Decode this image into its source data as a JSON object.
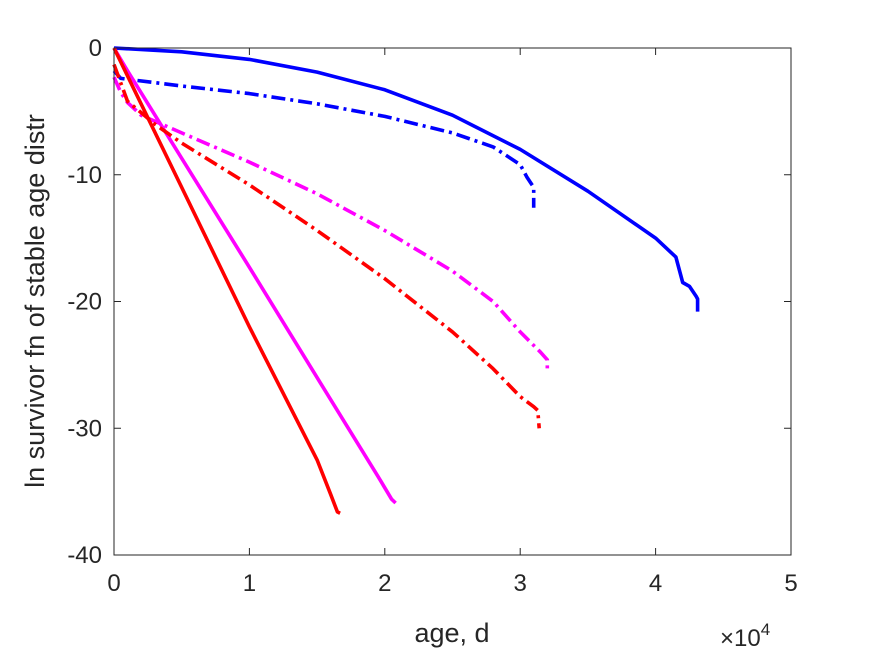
{
  "chart_data": {
    "type": "line",
    "title": "",
    "xlabel": "age, d",
    "ylabel": "ln survivor fn of stable age distr",
    "x_exponent_label": "×10",
    "x_exponent_power": "4",
    "xlim": [
      0,
      50000
    ],
    "ylim": [
      -40,
      0
    ],
    "xticks": [
      0,
      10000,
      20000,
      30000,
      40000,
      50000
    ],
    "xtick_labels": [
      "0",
      "1",
      "2",
      "3",
      "4",
      "5"
    ],
    "yticks": [
      0,
      -10,
      -20,
      -30,
      -40
    ],
    "ytick_labels": [
      "0",
      "-10",
      "-20",
      "-30",
      "-40"
    ],
    "grid": false,
    "legend": "none",
    "series": [
      {
        "color": "#0000ff",
        "style": "solid",
        "x": [
          0,
          5000,
          10000,
          15000,
          20000,
          25000,
          30000,
          35000,
          40000,
          41500,
          42000,
          42500,
          43000,
          43100,
          43100
        ],
        "y": [
          0,
          -0.3,
          -0.9,
          -1.9,
          -3.3,
          -5.3,
          -8.0,
          -11.3,
          -15.0,
          -16.5,
          -18.5,
          -18.8,
          -19.6,
          -19.8,
          -20.8
        ]
      },
      {
        "color": "#0000ff",
        "style": "dashdot",
        "x": [
          0,
          500,
          5000,
          10000,
          15000,
          20000,
          25000,
          28000,
          30000,
          30500,
          31000,
          31000
        ],
        "y": [
          -1.8,
          -2.4,
          -3.0,
          -3.6,
          -4.4,
          -5.4,
          -6.7,
          -7.8,
          -9.2,
          -10.2,
          -11.0,
          -12.6
        ]
      },
      {
        "color": "#ff00ff",
        "style": "solid",
        "x": [
          0,
          1000,
          5000,
          10000,
          15000,
          19500,
          20500,
          20800
        ],
        "y": [
          0,
          -1.8,
          -8.7,
          -17.3,
          -26.0,
          -33.8,
          -35.6,
          -35.9
        ]
      },
      {
        "color": "#ff00ff",
        "style": "dashdot",
        "x": [
          0,
          500,
          1000,
          2000,
          5000,
          10000,
          15000,
          20000,
          25000,
          28000,
          30000,
          31500,
          32000,
          32000
        ],
        "y": [
          -2.3,
          -3.5,
          -4.3,
          -5.3,
          -6.7,
          -9.0,
          -11.5,
          -14.4,
          -17.6,
          -20.0,
          -22.4,
          -24.0,
          -24.6,
          -25.6
        ]
      },
      {
        "color": "#ff0000",
        "style": "solid",
        "x": [
          0,
          1000,
          5000,
          10000,
          15000,
          16000,
          16500,
          16700
        ],
        "y": [
          0,
          -2.2,
          -11.0,
          -22.0,
          -32.5,
          -35.2,
          -36.6,
          -36.7
        ]
      },
      {
        "color": "#ff0000",
        "style": "dashdot",
        "x": [
          0,
          1000,
          3000,
          5000,
          10000,
          15000,
          20000,
          25000,
          28000,
          30000,
          31000,
          31300,
          31400
        ],
        "y": [
          -1.3,
          -4.2,
          -6.0,
          -7.5,
          -10.8,
          -14.4,
          -18.2,
          -22.4,
          -25.3,
          -27.5,
          -28.3,
          -28.6,
          -30.0
        ]
      }
    ]
  }
}
